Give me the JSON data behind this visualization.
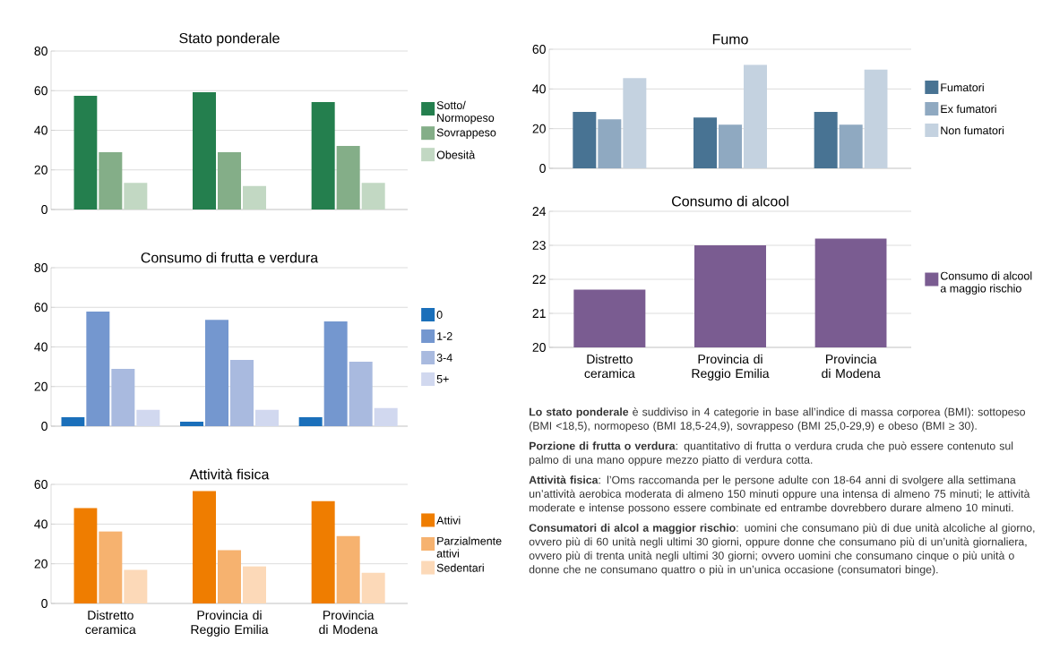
{
  "chart_data": [
    {
      "type": "bar",
      "title": "Stato ponderale",
      "categories": [
        null,
        null,
        null
      ],
      "tick_labels": "y",
      "ylim": [
        0,
        80
      ],
      "yticks": [
        0,
        20,
        40,
        60,
        80
      ],
      "grid": "y",
      "legend": "right",
      "series": [
        {
          "name": "Sotto/ Normopeso",
          "color": "#247f4e",
          "values": [
            57.4,
            59.2,
            54.2
          ]
        },
        {
          "name": "Sovrappeso",
          "color": "#84ae88",
          "values": [
            28.9,
            28.9,
            32.1
          ]
        },
        {
          "name": "Obesità",
          "color": "#c2d8c3",
          "values": [
            13.5,
            11.9,
            13.5
          ]
        }
      ]
    },
    {
      "type": "bar",
      "title": "Consumo di frutta e verdura",
      "categories": [
        null,
        null,
        null
      ],
      "tick_labels": "y",
      "ylim": [
        0,
        80
      ],
      "yticks": [
        0,
        20,
        40,
        60,
        80
      ],
      "grid": "y",
      "legend": "right",
      "series": [
        {
          "name": "0",
          "color": "#1a6fba",
          "values": [
            4.5,
            2.3,
            4.5
          ]
        },
        {
          "name": "1-2",
          "color": "#7497cf",
          "values": [
            57.9,
            53.7,
            52.9
          ]
        },
        {
          "name": "3-4",
          "color": "#a9badf",
          "values": [
            28.9,
            33.4,
            32.6
          ]
        },
        {
          "name": "5+",
          "color": "#d1d8ef",
          "values": [
            8.2,
            8.2,
            9.2
          ]
        }
      ]
    },
    {
      "type": "bar",
      "title": "Attività fisica",
      "categories": [
        "Distretto ceramica",
        "Provincia di Reggio Emilia",
        "Provincia di Modena"
      ],
      "ylim": [
        0,
        60
      ],
      "yticks": [
        0,
        20,
        40,
        60
      ],
      "grid": "y",
      "legend": "right",
      "series": [
        {
          "name": "Attivi",
          "color": "#ef7d00",
          "values": [
            48.1,
            56.6,
            51.6
          ]
        },
        {
          "name": "Parzialmente attivi",
          "color": "#f6b26f",
          "values": [
            36.3,
            26.8,
            34.0
          ]
        },
        {
          "name": "Sedentari",
          "color": "#fcd9b8",
          "values": [
            16.9,
            18.7,
            15.5
          ]
        }
      ]
    },
    {
      "type": "bar",
      "title": "Fumo",
      "categories": [
        null,
        null,
        null
      ],
      "tick_labels": "y",
      "ylim": [
        0,
        60
      ],
      "yticks": [
        0,
        20,
        40,
        60
      ],
      "grid": "y",
      "legend": "right",
      "series": [
        {
          "name": "Fumatori",
          "color": "#487393",
          "values": [
            28.4,
            25.6,
            28.4
          ]
        },
        {
          "name": "Ex fumatori",
          "color": "#8fa9c1",
          "values": [
            24.7,
            22.0,
            22.0
          ]
        },
        {
          "name": "Non fumatori",
          "color": "#c4d2e0",
          "values": [
            45.5,
            52.2,
            49.7
          ]
        }
      ]
    },
    {
      "type": "bar",
      "title": "Consumo di alcool",
      "categories": [
        "Distretto ceramica",
        "Provincia di Reggio Emilia",
        "Provincia di Modena"
      ],
      "ylim": [
        20,
        24
      ],
      "yticks": [
        20,
        21,
        22,
        23,
        24
      ],
      "grid": "y",
      "legend": "right",
      "series": [
        {
          "name": "Consumo di alcool a maggio rischio",
          "color": "#7a5c91",
          "values": [
            21.7,
            23.0,
            23.2
          ]
        }
      ]
    },
    {
      "type": "other",
      "annotations": [
        "**Lo stato ponderale** è suddiviso in 4 categorie in base all’indice di massa corporea (BMI): sottopeso (BMI <18,5), normopeso (BMI 18,5-24,9), sovrappeso (BMI 25,0-29,9) e obeso (BMI ≥ 30).",
        "**Porzione di frutta o verdura**: quantitativo di frutta o verdura cruda che può essere contenuto sul palmo di una mano oppure mezzo piatto di verdura cotta.",
        "**Attività fisica**: l’Oms raccomanda per le persone adulte con 18-64 anni di svolgere alla settimana un’attività aerobica moderata di almeno 150 minuti oppure una intensa di almeno 75 minuti; le attività moderate e intense possono essere combinate ed entrambe dovrebbero durare almeno 10 minuti.",
        "**Consumatori di alcol a maggior rischio**: uomini che consumano più di due unità alcoliche al giorno, ovvero più di 60 unità negli ultimi 30 giorni, oppure donne che consumano più di un’unità giornaliera, ovvero più di trenta unità negli ultimi 30 giorni; ovvero uomini che consumano cinque o più unità o donne che ne consumano quattro o più in un’unica occasione (consumatori binge)."
      ]
    }
  ]
}
